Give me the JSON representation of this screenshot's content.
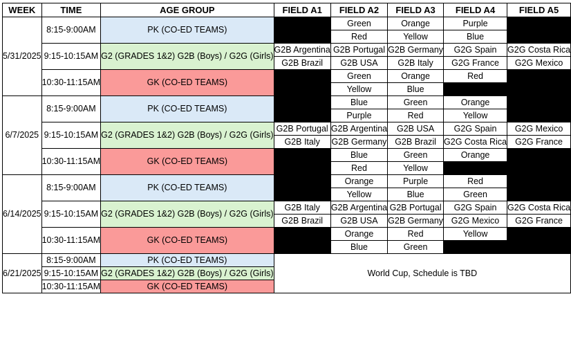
{
  "headers": {
    "week": "WEEK",
    "time": "TIME",
    "age_group": "AGE GROUP",
    "field_a1": "FIELD A1",
    "field_a2": "FIELD A2",
    "field_a3": "FIELD A3",
    "field_a4": "FIELD A4",
    "field_a5": "FIELD A5"
  },
  "slots": {
    "s1": "8:15-9:00AM",
    "s2": "9:15-10:15AM",
    "s3": "10:30-11:15AM"
  },
  "age_groups": {
    "pk": "PK (CO-ED TEAMS)",
    "g2_w1": "G2 (GRADES 1&2)    G2B (Boys) / G2G (Girls)",
    "g2": "G2 (GRADES 1&2) G2B (Boys) / G2G (Girls)",
    "gk": "GK (CO-ED TEAMS)"
  },
  "weeks": [
    {
      "date": "5/31/2025",
      "pk": {
        "a2": [
          "Green",
          "Red"
        ],
        "a3": [
          "Orange",
          "Yellow"
        ],
        "a4": [
          "Purple",
          "Blue"
        ]
      },
      "g2": {
        "a1": [
          "G2B Argentina",
          "G2B Brazil"
        ],
        "a2": [
          "G2B Portugal",
          "G2B USA"
        ],
        "a3": [
          "G2B Germany",
          "G2B Italy"
        ],
        "a4": [
          "G2G Spain",
          "G2G France"
        ],
        "a5": [
          "G2G Costa Rica",
          "G2G Mexico"
        ]
      },
      "gk": {
        "a2": [
          "Green",
          "Yellow"
        ],
        "a3": [
          "Orange",
          "Blue"
        ],
        "a4": [
          "Red",
          ""
        ]
      }
    },
    {
      "date": "6/7/2025",
      "pk": {
        "a2": [
          "Blue",
          "Purple"
        ],
        "a3": [
          "Green",
          "Red"
        ],
        "a4": [
          "Orange",
          "Yellow"
        ]
      },
      "g2": {
        "a1": [
          "G2B Portugal",
          "G2B Italy"
        ],
        "a2": [
          "G2B Argentina",
          "G2B Germany"
        ],
        "a3": [
          "G2B USA",
          "G2B Brazil"
        ],
        "a4": [
          "G2G Spain",
          "G2G Costa Rica"
        ],
        "a5": [
          "G2G Mexico",
          "G2G France"
        ]
      },
      "gk": {
        "a2": [
          "Blue",
          "Red"
        ],
        "a3": [
          "Green",
          "Yellow"
        ],
        "a4": [
          "Orange",
          ""
        ]
      }
    },
    {
      "date": "6/14/2025",
      "pk": {
        "a2": [
          "Orange",
          "Yellow"
        ],
        "a3": [
          "Purple",
          "Blue"
        ],
        "a4": [
          "Red",
          "Green"
        ]
      },
      "g2": {
        "a1": [
          "G2B Italy",
          "G2B Brazil"
        ],
        "a2": [
          "G2B Argentina",
          "G2B USA"
        ],
        "a3": [
          "G2B Portugal",
          "G2B Germany"
        ],
        "a4": [
          "G2G Spain",
          "G2G Mexico"
        ],
        "a5": [
          "G2G Costa Rica",
          "G2G France"
        ]
      },
      "gk": {
        "a2": [
          "Orange",
          "Blue"
        ],
        "a3": [
          "Red",
          "Green"
        ],
        "a4": [
          "Yellow",
          ""
        ]
      }
    },
    {
      "date": "6/21/2025",
      "note": "World Cup, Schedule is TBD"
    }
  ],
  "colors": {
    "pk_fill": "#dae9f7",
    "g2_fill": "#d9f2d0",
    "gk_fill": "#fa9a99",
    "unused_field": "#000000"
  }
}
